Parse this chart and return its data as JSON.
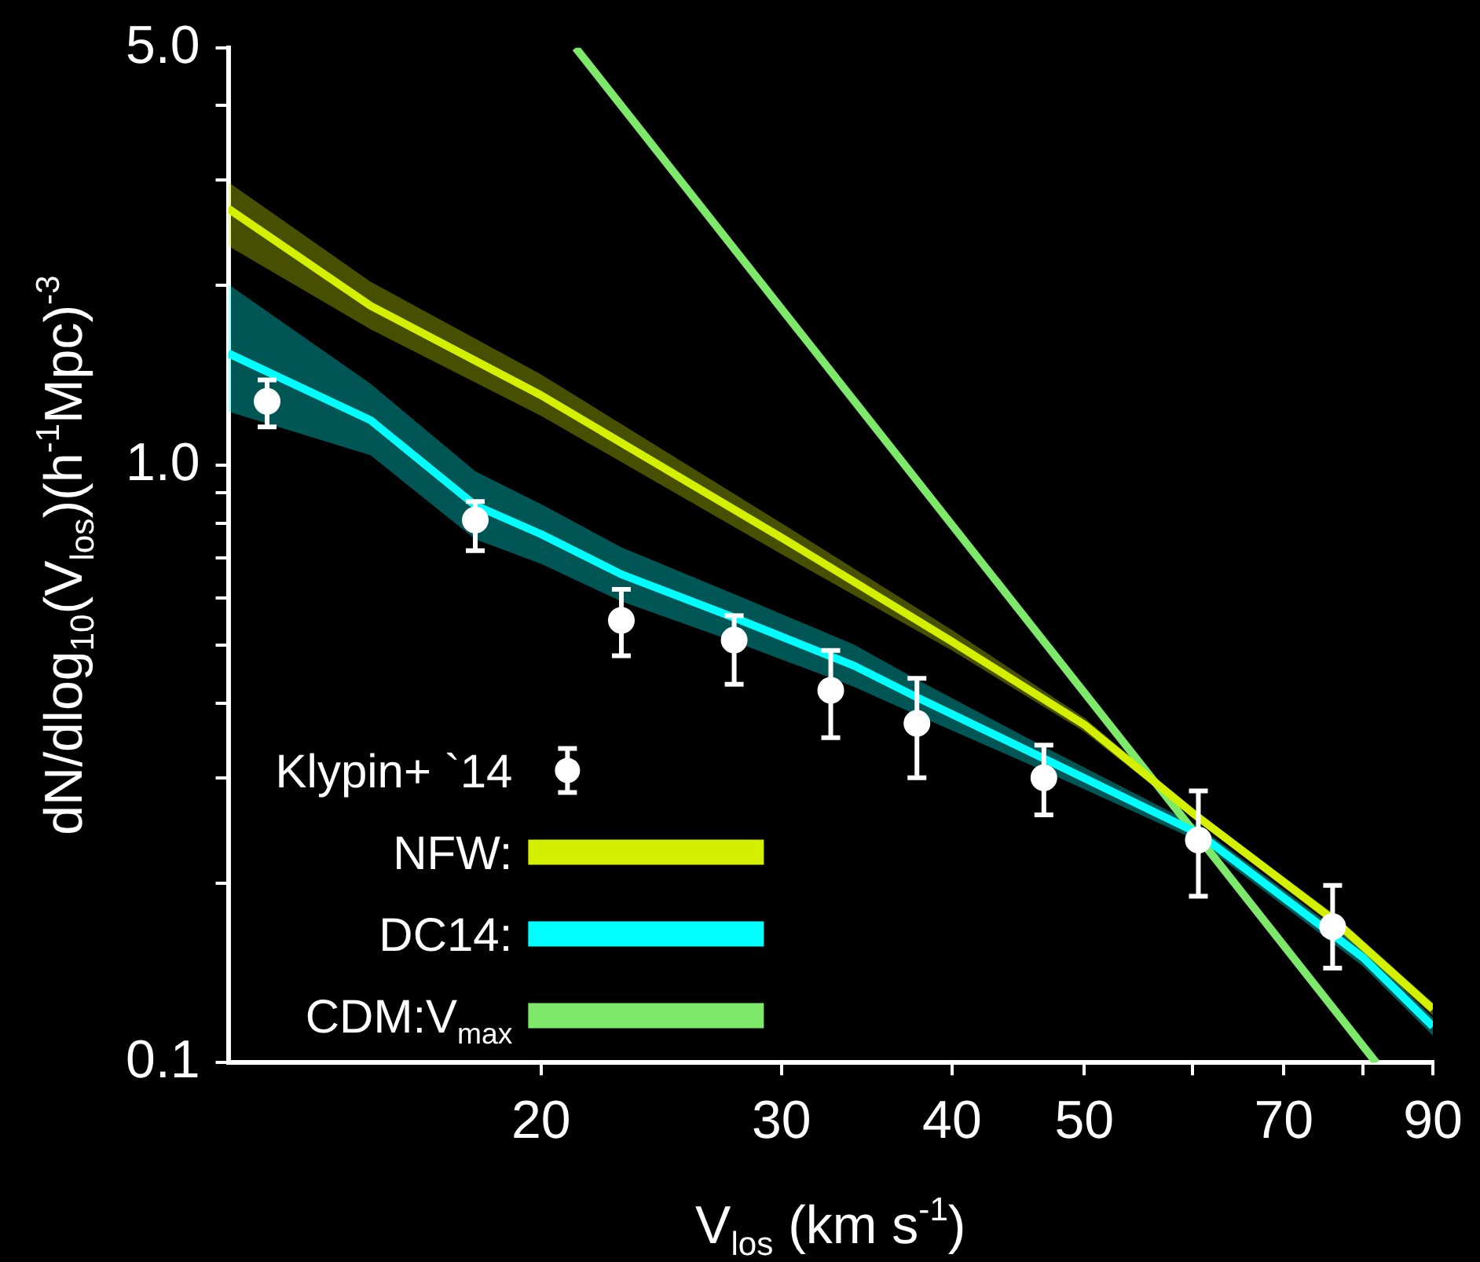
{
  "chart_data": {
    "type": "line",
    "xlabel": "V$_{los}$ (km s$^{-1}$)",
    "ylabel": "dN/dlog$_{10}$(V$_{los}$)(h$^{-1}$Mpc)$^{-3}$",
    "log": "xy",
    "legend": "bottom left",
    "xlim": [
      11.8,
      90
    ],
    "xticks": [
      20,
      30,
      40,
      50,
      {
        "value": 60,
        "label": null
      },
      70,
      {
        "value": 80,
        "label": null
      },
      90
    ],
    "ylim": [
      0.1,
      5.0
    ],
    "yticks": [
      0.1,
      {
        "value": 0.2,
        "label": null
      },
      {
        "value": 0.3,
        "label": null
      },
      {
        "value": 0.4,
        "label": null
      },
      {
        "value": 0.5,
        "label": null
      },
      {
        "value": 0.6,
        "label": null
      },
      {
        "value": 0.7,
        "label": null
      },
      {
        "value": 0.8,
        "label": null
      },
      {
        "value": 0.9,
        "label": null
      },
      {
        "value": 1,
        "label": "1.0"
      },
      {
        "value": 2,
        "label": null
      },
      {
        "value": 3,
        "label": null
      },
      {
        "value": 4,
        "label": null
      },
      {
        "value": 5,
        "label": "5.0"
      }
    ],
    "series": [
      {
        "name": "Klypin+ `14",
        "type": "scatter",
        "marker": "circle",
        "color": "#ffffff",
        "x": [
          12.6,
          17.9,
          22.9,
          27.7,
          32.6,
          37.7,
          46.7,
          60.6,
          76.0
        ],
        "values": [
          1.28,
          0.81,
          0.55,
          0.51,
          0.42,
          0.37,
          0.3,
          0.236,
          0.169
        ],
        "errors": [
          [
            1.16,
            1.39
          ],
          [
            0.72,
            0.87
          ],
          [
            0.48,
            0.62
          ],
          [
            0.43,
            0.56
          ],
          [
            0.35,
            0.49
          ],
          [
            0.3,
            0.44
          ],
          [
            0.26,
            0.34
          ],
          [
            0.19,
            0.285
          ],
          [
            0.144,
            0.198
          ]
        ]
      },
      {
        "name": "NFW:",
        "color": "#d4f000",
        "x": [
          11.8,
          15,
          20,
          30,
          40,
          50,
          60,
          76,
          90
        ],
        "values": [
          2.69,
          1.85,
          1.31,
          0.757,
          0.507,
          0.368,
          0.262,
          0.174,
          0.123
        ],
        "upper": [
          2.98,
          2.03,
          1.42,
          0.8,
          0.53,
          0.378,
          0.266,
          0.178,
          0.126
        ],
        "lower": [
          2.33,
          1.69,
          1.21,
          0.71,
          0.49,
          0.358,
          0.258,
          0.17,
          0.12
        ]
      },
      {
        "name": "DC14:",
        "color": "#00ffff",
        "x": [
          11.8,
          15,
          17.9,
          20,
          22.9,
          27.7,
          33.9,
          37.7,
          46.7,
          60.6,
          80,
          90
        ],
        "values": [
          1.54,
          1.19,
          0.857,
          0.767,
          0.657,
          0.556,
          0.462,
          0.409,
          0.323,
          0.242,
          0.15,
          0.115
        ],
        "upper": [
          2.01,
          1.37,
          0.977,
          0.861,
          0.729,
          0.609,
          0.501,
          0.438,
          0.338,
          0.249,
          0.155,
          0.119
        ],
        "lower": [
          1.23,
          1.04,
          0.752,
          0.684,
          0.592,
          0.507,
          0.426,
          0.382,
          0.308,
          0.235,
          0.145,
          0.111
        ]
      },
      {
        "name": "CDM:V$_{max}$",
        "color": "#7ee86a",
        "x": [
          21.2,
          81.8
        ],
        "values": [
          5.0,
          0.1
        ]
      }
    ]
  }
}
